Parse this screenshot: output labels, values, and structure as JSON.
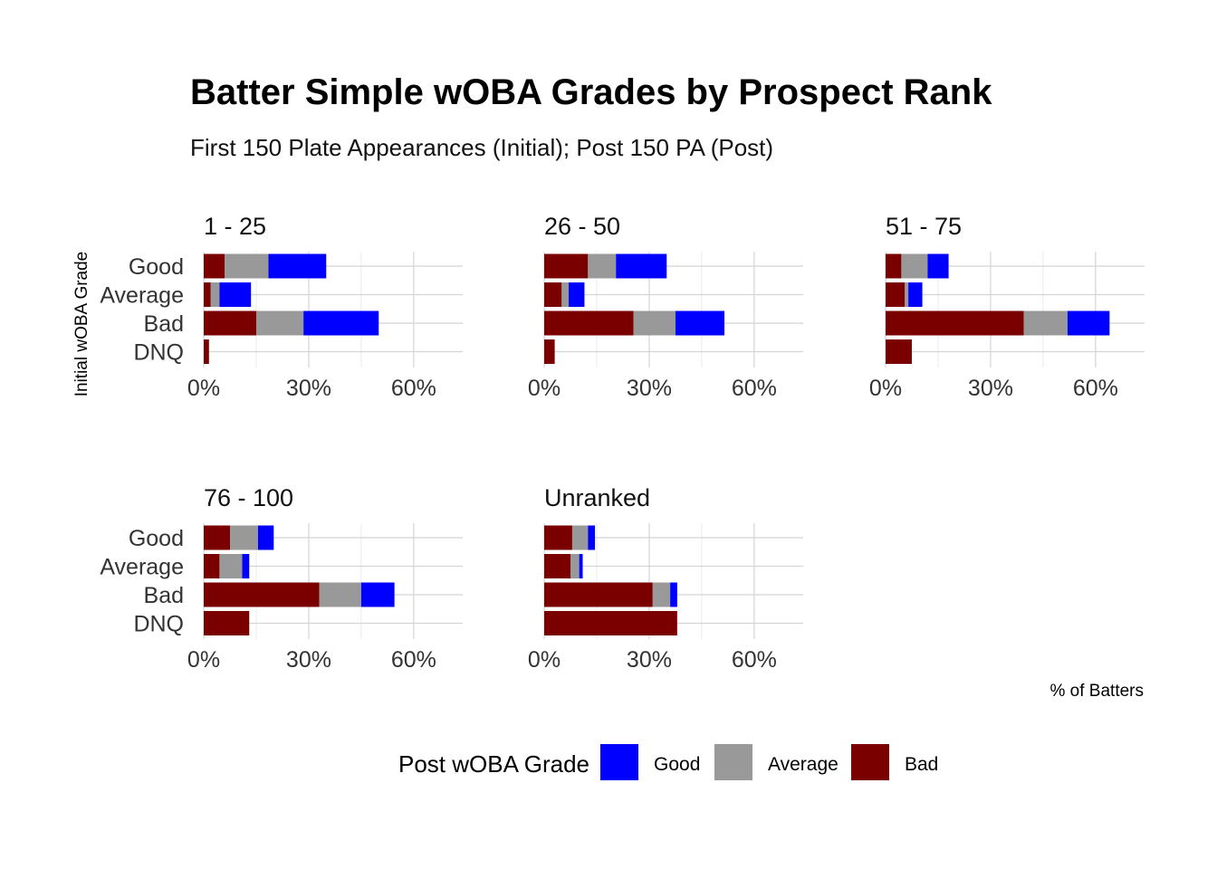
{
  "chart_data": {
    "type": "bar",
    "orientation": "horizontal",
    "stacked": true,
    "title": "Batter Simple wOBA Grades by Prospect Rank",
    "subtitle": "First 150 Plate Appearances (Initial); Post 150 PA (Post)",
    "xlabel": "% of Batters",
    "ylabel": "Initial wOBA Grade",
    "xlim": [
      0,
      74
    ],
    "xticks": [
      0,
      30,
      60
    ],
    "xtick_labels": [
      "0%",
      "30%",
      "60%"
    ],
    "categories": [
      "Good",
      "Average",
      "Bad",
      "DNQ"
    ],
    "legend": {
      "title": "Post wOBA Grade",
      "position": "bottom",
      "entries": [
        {
          "name": "Good",
          "color": "#0000ff"
        },
        {
          "name": "Average",
          "color": "#999999"
        },
        {
          "name": "Bad",
          "color": "#7a0000"
        }
      ]
    },
    "stack_order": [
      "Bad",
      "Average",
      "Good"
    ],
    "panels": [
      {
        "label": "1 - 25",
        "series": [
          {
            "name": "Bad",
            "values": [
              6,
              2,
              15,
              1.5
            ]
          },
          {
            "name": "Average",
            "values": [
              12.5,
              2.5,
              13.5,
              0
            ]
          },
          {
            "name": "Good",
            "values": [
              16.5,
              9,
              21.5,
              0
            ]
          }
        ]
      },
      {
        "label": "26 - 50",
        "series": [
          {
            "name": "Bad",
            "values": [
              12.5,
              5,
              25.5,
              3
            ]
          },
          {
            "name": "Average",
            "values": [
              8,
              2,
              12,
              0
            ]
          },
          {
            "name": "Good",
            "values": [
              14.5,
              4.5,
              14,
              0
            ]
          }
        ]
      },
      {
        "label": "51 - 75",
        "series": [
          {
            "name": "Bad",
            "values": [
              4.5,
              5.5,
              39.5,
              7.5
            ]
          },
          {
            "name": "Average",
            "values": [
              7.5,
              1,
              12.5,
              0
            ]
          },
          {
            "name": "Good",
            "values": [
              6,
              4,
              12,
              0
            ]
          }
        ]
      },
      {
        "label": "76 - 100",
        "series": [
          {
            "name": "Bad",
            "values": [
              7.5,
              4.5,
              33,
              13
            ]
          },
          {
            "name": "Average",
            "values": [
              8,
              6.5,
              12,
              0
            ]
          },
          {
            "name": "Good",
            "values": [
              4.5,
              2,
              9.5,
              0
            ]
          }
        ]
      },
      {
        "label": "Unranked",
        "series": [
          {
            "name": "Bad",
            "values": [
              8,
              7.5,
              31,
              38
            ]
          },
          {
            "name": "Average",
            "values": [
              4.5,
              2.5,
              5,
              0
            ]
          },
          {
            "name": "Good",
            "values": [
              2,
              1,
              2,
              0
            ]
          }
        ]
      }
    ]
  }
}
